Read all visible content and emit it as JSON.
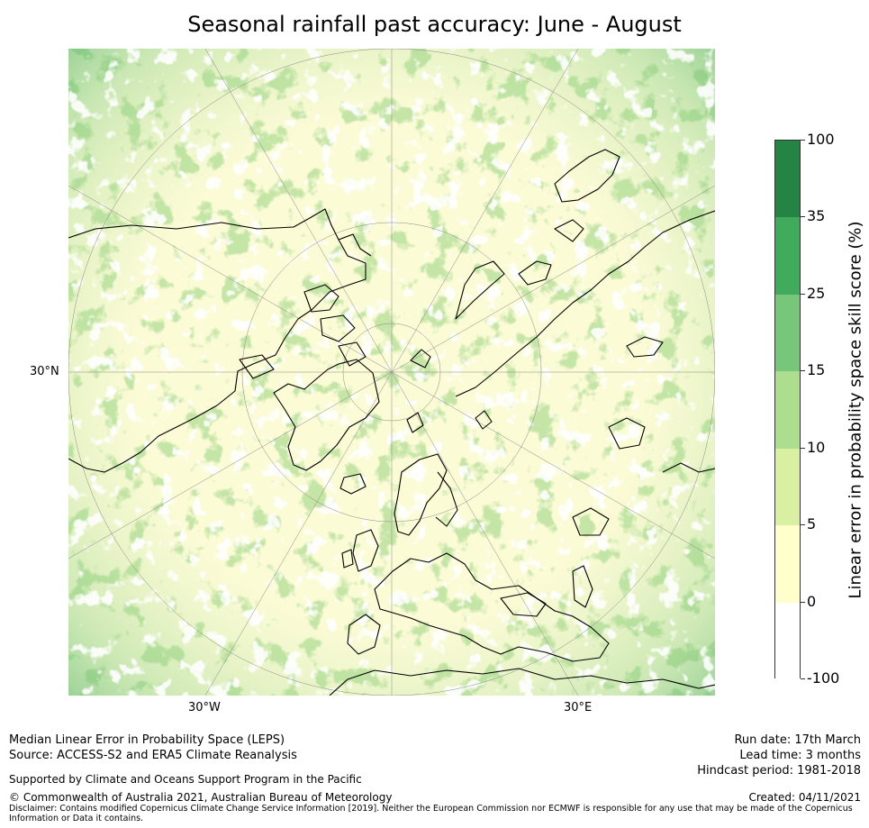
{
  "title": "Seasonal rainfall past accuracy: June - August",
  "map": {
    "lat_label": "30°N",
    "lon_labels": {
      "west": "30°W",
      "east": "30°E"
    }
  },
  "legend": {
    "title": "Linear error in probability space skill score (%)",
    "levels": [
      "100",
      "35",
      "25",
      "15",
      "10",
      "5",
      "0",
      "-100"
    ],
    "colors": [
      "#238443",
      "#41ab5d",
      "#78c679",
      "#addd8e",
      "#d9f0a3",
      "#ffffcc",
      "#ffffff"
    ]
  },
  "footer": {
    "line1": "Median Linear Error in Probability Space (LEPS)",
    "line2": "Source: ACCESS-S2 and ERA5 Climate Reanalysis",
    "line3": "Supported by Climate and Oceans Support Program in the Pacific",
    "line4": "© Commonwealth of Australia 2021, Australian Bureau of Meteorology",
    "disclaimer": "Disclaimer: Contains modified Copernicus Climate Change Service Information [2019]. Neither the European Commission nor ECMWF is responsible for any use that may be made of the Copernicus Information or Data it contains.",
    "run_date": "Run date: 17th March",
    "lead_time": "Lead time: 3 months",
    "hindcast": "Hindcast period: 1981-2018",
    "created": "Created: 04/11/2021"
  }
}
